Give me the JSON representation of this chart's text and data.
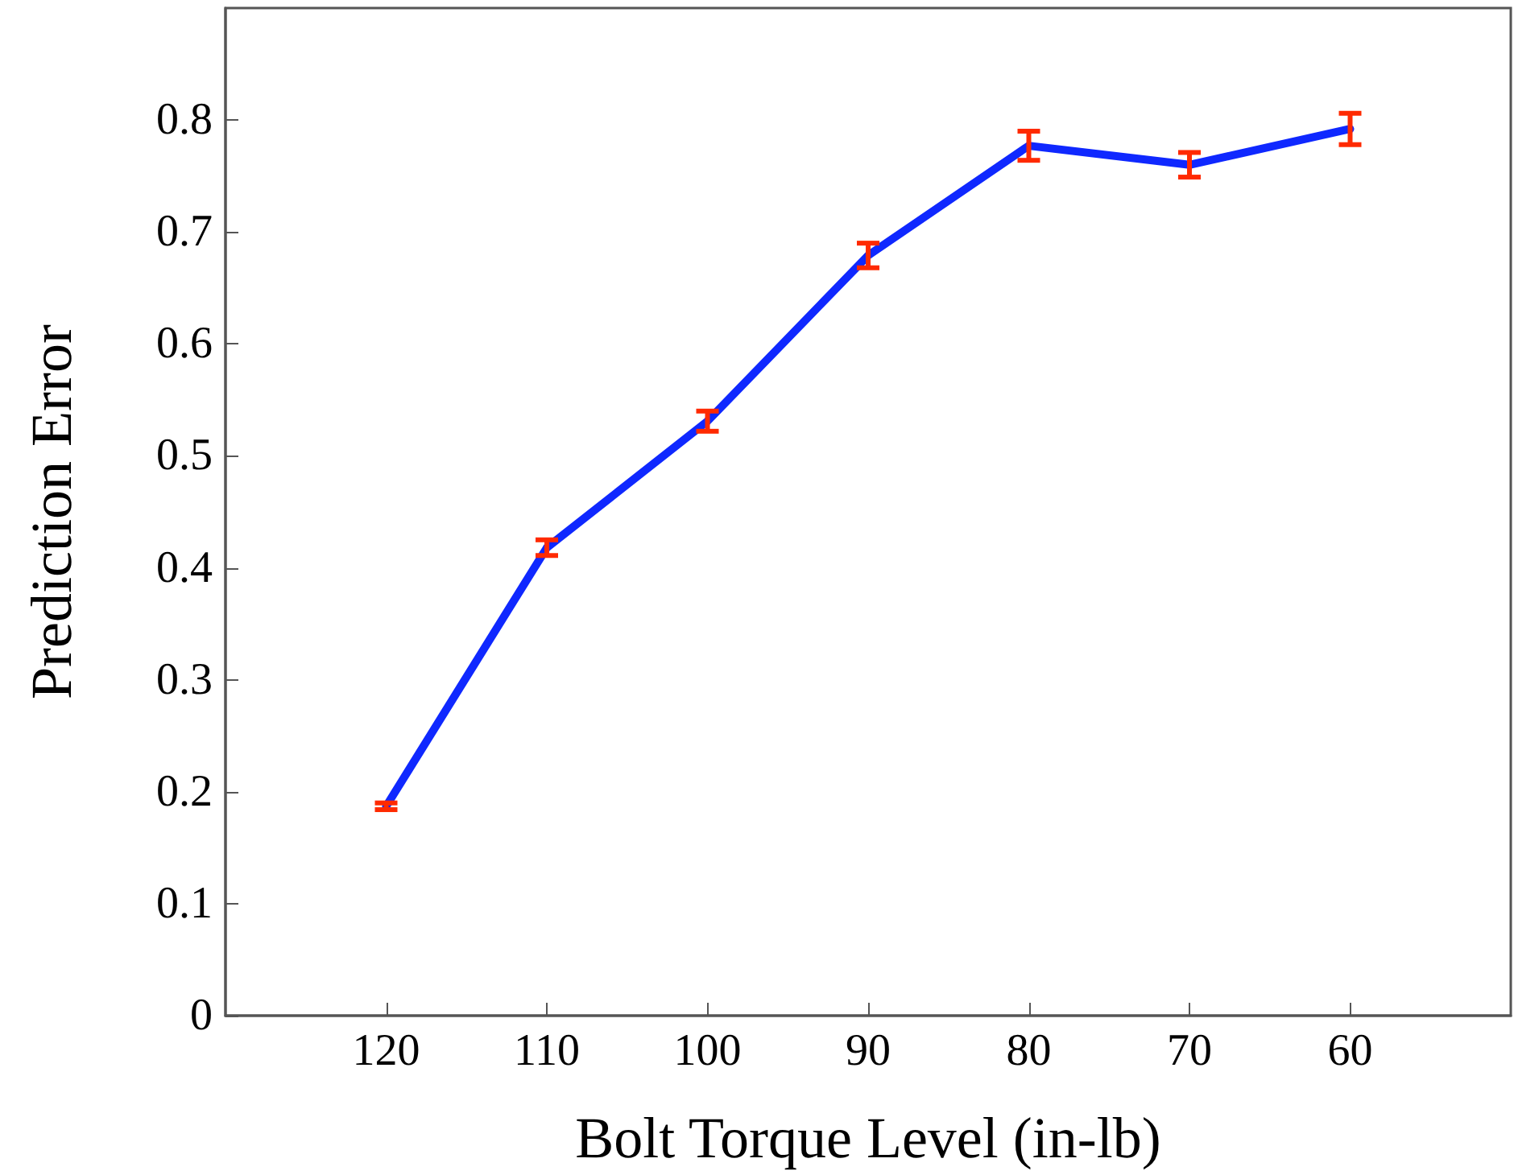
{
  "chart_data": {
    "type": "line",
    "xlabel": "Bolt Torque Level (in-lb)",
    "ylabel": "Prediction Error",
    "x": [
      120,
      110,
      100,
      90,
      80,
      70,
      60
    ],
    "series": [
      {
        "color": "#0f28ff",
        "values": [
          0.187,
          0.418,
          0.531,
          0.679,
          0.777,
          0.76,
          0.792
        ],
        "errors": [
          0.003,
          0.007,
          0.009,
          0.011,
          0.013,
          0.011,
          0.014
        ]
      }
    ],
    "xlim": [
      130,
      50
    ],
    "xticks": [
      120,
      110,
      100,
      90,
      80,
      70,
      60
    ],
    "ylim": [
      0,
      0.9
    ],
    "yticks": [
      0,
      0.1,
      0.2,
      0.3,
      0.4,
      0.5,
      0.6,
      0.7,
      0.8
    ],
    "grid": false,
    "marker": "none",
    "line_style": "solid"
  }
}
